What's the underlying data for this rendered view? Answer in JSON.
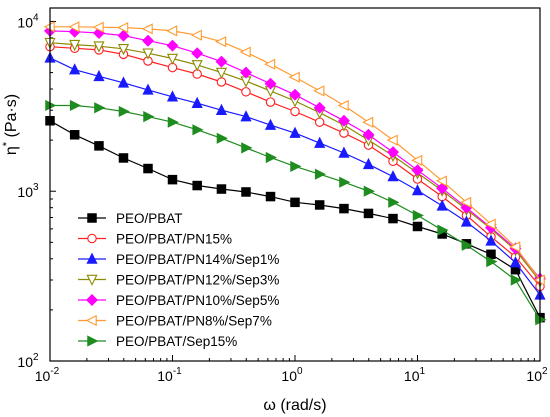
{
  "chart_data": {
    "type": "line",
    "xlabel": "ω (rad/s)",
    "ylabel": {
      "base": "η",
      "sup": "*",
      "unit": " (Pa·s)"
    },
    "xscale": "log",
    "yscale": "log",
    "xlim": [
      0.01,
      100
    ],
    "ylim": [
      100,
      12000
    ],
    "x_ticks": [
      {
        "value": 0.01,
        "base": "10",
        "exp": "-2"
      },
      {
        "value": 0.1,
        "base": "10",
        "exp": "-1"
      },
      {
        "value": 1,
        "base": "10",
        "exp": "0"
      },
      {
        "value": 10,
        "base": "10",
        "exp": "1"
      },
      {
        "value": 100,
        "base": "10",
        "exp": "2"
      }
    ],
    "y_ticks": [
      {
        "value": 100,
        "base": "10",
        "exp": "2"
      },
      {
        "value": 1000,
        "base": "10",
        "exp": "3"
      },
      {
        "value": 10000,
        "base": "10",
        "exp": "4"
      }
    ],
    "legend_position": "bottom-left",
    "grid": false,
    "series": [
      {
        "name": "PEO/PBAT",
        "marker": "square",
        "color": "#000000",
        "points": [
          [
            0.01,
            2600
          ],
          [
            0.0159,
            2150
          ],
          [
            0.0251,
            1850
          ],
          [
            0.0398,
            1570
          ],
          [
            0.0631,
            1360
          ],
          [
            0.1,
            1170
          ],
          [
            0.159,
            1080
          ],
          [
            0.251,
            1030
          ],
          [
            0.398,
            990
          ],
          [
            0.631,
            930
          ],
          [
            1,
            860
          ],
          [
            1.59,
            830
          ],
          [
            2.51,
            790
          ],
          [
            3.98,
            740
          ],
          [
            6.31,
            690
          ],
          [
            10,
            620
          ],
          [
            15.9,
            560
          ],
          [
            25.1,
            490
          ],
          [
            39.8,
            425
          ],
          [
            63.1,
            345
          ],
          [
            100,
            180
          ]
        ]
      },
      {
        "name": "PEO/PBAT/PN15%",
        "marker": "circle-open",
        "color": "#ff2020",
        "points": [
          [
            0.01,
            7100
          ],
          [
            0.0159,
            6950
          ],
          [
            0.0251,
            6800
          ],
          [
            0.0398,
            6400
          ],
          [
            0.0631,
            5850
          ],
          [
            0.1,
            5350
          ],
          [
            0.159,
            4900
          ],
          [
            0.251,
            4400
          ],
          [
            0.398,
            3850
          ],
          [
            0.631,
            3350
          ],
          [
            1,
            2950
          ],
          [
            1.59,
            2550
          ],
          [
            2.51,
            2200
          ],
          [
            3.98,
            1870
          ],
          [
            6.31,
            1500
          ],
          [
            10,
            1180
          ],
          [
            15.9,
            930
          ],
          [
            25.1,
            720
          ],
          [
            39.8,
            540
          ],
          [
            63.1,
            410
          ],
          [
            100,
            275
          ]
        ]
      },
      {
        "name": "PEO/PBAT/PN14%/Sep1%",
        "marker": "triangle-up",
        "color": "#1a1aff",
        "points": [
          [
            0.01,
            6100
          ],
          [
            0.0159,
            5200
          ],
          [
            0.0251,
            4750
          ],
          [
            0.0398,
            4350
          ],
          [
            0.0631,
            3950
          ],
          [
            0.1,
            3600
          ],
          [
            0.159,
            3300
          ],
          [
            0.251,
            3000
          ],
          [
            0.398,
            2750
          ],
          [
            0.631,
            2450
          ],
          [
            1,
            2200
          ],
          [
            1.59,
            1920
          ],
          [
            2.51,
            1680
          ],
          [
            3.98,
            1440
          ],
          [
            6.31,
            1220
          ],
          [
            10,
            1010
          ],
          [
            15.9,
            820
          ],
          [
            25.1,
            660
          ],
          [
            39.8,
            510
          ],
          [
            63.1,
            380
          ],
          [
            100,
            245
          ]
        ]
      },
      {
        "name": "PEO/PBAT/PN12%/Sep3%",
        "marker": "triangle-down-open",
        "color": "#8b8b00",
        "points": [
          [
            0.01,
            7500
          ],
          [
            0.0159,
            7300
          ],
          [
            0.0251,
            7150
          ],
          [
            0.0398,
            6900
          ],
          [
            0.0631,
            6500
          ],
          [
            0.1,
            6050
          ],
          [
            0.159,
            5550
          ],
          [
            0.251,
            5000
          ],
          [
            0.398,
            4450
          ],
          [
            0.631,
            3900
          ],
          [
            1,
            3400
          ],
          [
            1.59,
            2900
          ],
          [
            2.51,
            2450
          ],
          [
            3.98,
            2000
          ],
          [
            6.31,
            1620
          ],
          [
            10,
            1280
          ],
          [
            15.9,
            1010
          ],
          [
            25.1,
            780
          ],
          [
            39.8,
            600
          ],
          [
            63.1,
            450
          ],
          [
            100,
            295
          ]
        ]
      },
      {
        "name": "PEO/PBAT/PN10%/Sep5%",
        "marker": "diamond",
        "color": "#ff00ff",
        "points": [
          [
            0.01,
            8800
          ],
          [
            0.0159,
            8700
          ],
          [
            0.0251,
            8550
          ],
          [
            0.0398,
            8250
          ],
          [
            0.0631,
            7700
          ],
          [
            0.1,
            7200
          ],
          [
            0.159,
            6500
          ],
          [
            0.251,
            5800
          ],
          [
            0.398,
            5000
          ],
          [
            0.631,
            4300
          ],
          [
            1,
            3700
          ],
          [
            1.59,
            3100
          ],
          [
            2.51,
            2600
          ],
          [
            3.98,
            2150
          ],
          [
            6.31,
            1700
          ],
          [
            10,
            1330
          ],
          [
            15.9,
            1040
          ],
          [
            25.1,
            800
          ],
          [
            39.8,
            610
          ],
          [
            63.1,
            460
          ],
          [
            100,
            305
          ]
        ]
      },
      {
        "name": "PEO/PBAT/PN8%/Sep7%",
        "marker": "triangle-left-open",
        "color": "#ff9a30",
        "points": [
          [
            0.01,
            9300
          ],
          [
            0.0159,
            9300
          ],
          [
            0.0251,
            9250
          ],
          [
            0.0398,
            9200
          ],
          [
            0.0631,
            9050
          ],
          [
            0.1,
            8800
          ],
          [
            0.159,
            8300
          ],
          [
            0.251,
            7600
          ],
          [
            0.398,
            6600
          ],
          [
            0.631,
            5600
          ],
          [
            1,
            4700
          ],
          [
            1.59,
            3900
          ],
          [
            2.51,
            3200
          ],
          [
            3.98,
            2550
          ],
          [
            6.31,
            2000
          ],
          [
            10,
            1520
          ],
          [
            15.9,
            1150
          ],
          [
            25.1,
            860
          ],
          [
            39.8,
            640
          ],
          [
            63.1,
            470
          ],
          [
            100,
            300
          ]
        ]
      },
      {
        "name": "PEO/PBAT/Sep15%",
        "marker": "triangle-right",
        "color": "#1e8c1e",
        "points": [
          [
            0.01,
            3200
          ],
          [
            0.0159,
            3200
          ],
          [
            0.0251,
            3100
          ],
          [
            0.0398,
            2950
          ],
          [
            0.0631,
            2750
          ],
          [
            0.1,
            2550
          ],
          [
            0.159,
            2300
          ],
          [
            0.251,
            2050
          ],
          [
            0.398,
            1800
          ],
          [
            0.631,
            1580
          ],
          [
            1,
            1400
          ],
          [
            1.59,
            1260
          ],
          [
            2.51,
            1130
          ],
          [
            3.98,
            1000
          ],
          [
            6.31,
            860
          ],
          [
            10,
            720
          ],
          [
            15.9,
            590
          ],
          [
            25.1,
            480
          ],
          [
            39.8,
            385
          ],
          [
            63.1,
            300
          ],
          [
            100,
            175
          ]
        ]
      }
    ]
  }
}
